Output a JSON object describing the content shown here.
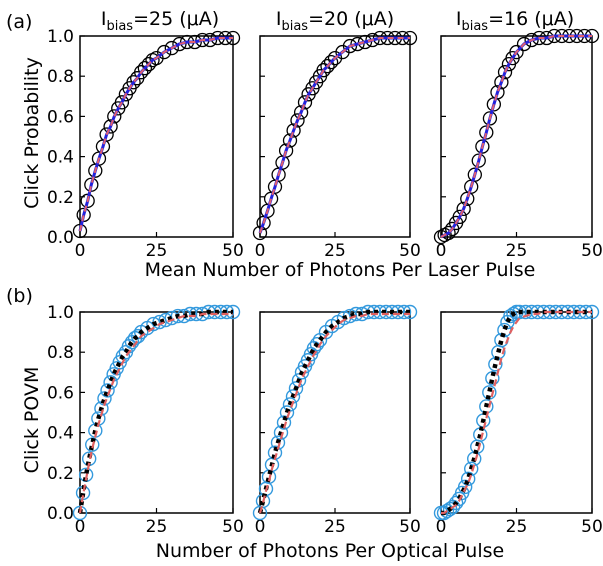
{
  "panel_labels": [
    "(a)",
    "(b)"
  ],
  "column_titles": [
    {
      "main": "I",
      "sub": "bias",
      "rest": "=25 (μA)"
    },
    {
      "main": "I",
      "sub": "bias",
      "rest": "=20 (μA)"
    },
    {
      "main": "I",
      "sub": "bias",
      "rest": "=16 (μA)"
    }
  ],
  "colors": {
    "experiment_marker_a": "#000000",
    "fit_line_a": "#2222dd",
    "fit_dashed_a": "#e06070",
    "experiment_marker_b": "#3399dd",
    "fit_dotted_b": "#000000",
    "fit_dashed_b": "#e06060"
  },
  "chart_data": [
    {
      "id": "a1",
      "type": "line",
      "row": "a",
      "column": 1,
      "ylabel": "Click Probability",
      "xlim": [
        0,
        50
      ],
      "ylim": [
        0,
        1
      ],
      "xticks": [
        "0",
        "25",
        "50"
      ],
      "yticks": [
        "0.0",
        "0.2",
        "0.4",
        "0.6",
        "0.8",
        "1.0"
      ],
      "x": [
        0,
        1.2,
        2.5,
        3.7,
        5,
        6.2,
        7.5,
        8.7,
        10,
        11.2,
        12.5,
        13.7,
        15,
        16.2,
        17.5,
        18.7,
        20,
        21.2,
        22.5,
        23.7,
        25,
        27.5,
        30,
        32.5,
        35,
        37.5,
        40,
        42.5,
        45,
        47.5,
        50
      ],
      "series": [
        {
          "values": [
            0.03,
            0.11,
            0.18,
            0.26,
            0.33,
            0.39,
            0.45,
            0.51,
            0.55,
            0.6,
            0.64,
            0.67,
            0.71,
            0.74,
            0.77,
            0.79,
            0.82,
            0.84,
            0.86,
            0.88,
            0.89,
            0.92,
            0.94,
            0.96,
            0.97,
            0.97,
            0.98,
            0.98,
            0.99,
            0.99,
            0.99
          ]
        },
        {
          "values": [
            0.03,
            0.11,
            0.18,
            0.26,
            0.33,
            0.39,
            0.45,
            0.51,
            0.55,
            0.6,
            0.64,
            0.67,
            0.71,
            0.74,
            0.77,
            0.79,
            0.82,
            0.84,
            0.86,
            0.88,
            0.89,
            0.92,
            0.94,
            0.96,
            0.97,
            0.97,
            0.98,
            0.98,
            0.99,
            0.99,
            0.99
          ]
        },
        {
          "values": [
            0.03,
            0.11,
            0.18,
            0.26,
            0.33,
            0.39,
            0.45,
            0.51,
            0.55,
            0.6,
            0.64,
            0.67,
            0.71,
            0.74,
            0.77,
            0.79,
            0.82,
            0.84,
            0.86,
            0.88,
            0.89,
            0.92,
            0.94,
            0.96,
            0.97,
            0.97,
            0.98,
            0.98,
            0.99,
            0.99,
            0.99
          ]
        }
      ]
    },
    {
      "id": "a2",
      "type": "line",
      "row": "a",
      "column": 2,
      "xlim": [
        0,
        50
      ],
      "ylim": [
        0,
        1
      ],
      "xticks": [
        "0",
        "25",
        "50"
      ],
      "yticks": [],
      "x": [
        0,
        1.2,
        2.5,
        3.7,
        5,
        6.2,
        7.5,
        8.7,
        10,
        11.2,
        12.5,
        13.7,
        15,
        16.2,
        17.5,
        18.7,
        20,
        21.2,
        22.5,
        23.7,
        25,
        27.5,
        30,
        32.5,
        35,
        37.5,
        40,
        42.5,
        45,
        47.5,
        50
      ],
      "series": [
        {
          "values": [
            0.02,
            0.07,
            0.13,
            0.19,
            0.25,
            0.31,
            0.37,
            0.43,
            0.48,
            0.53,
            0.58,
            0.62,
            0.67,
            0.71,
            0.74,
            0.77,
            0.8,
            0.83,
            0.85,
            0.87,
            0.89,
            0.92,
            0.95,
            0.96,
            0.97,
            0.98,
            0.99,
            0.99,
            0.99,
            0.99,
            0.99
          ]
        },
        {
          "values": [
            0.02,
            0.07,
            0.13,
            0.19,
            0.25,
            0.31,
            0.37,
            0.43,
            0.48,
            0.53,
            0.58,
            0.62,
            0.67,
            0.71,
            0.74,
            0.77,
            0.8,
            0.83,
            0.85,
            0.87,
            0.89,
            0.92,
            0.95,
            0.96,
            0.97,
            0.98,
            0.99,
            0.99,
            0.99,
            0.99,
            0.99
          ]
        },
        {
          "values": [
            0.02,
            0.07,
            0.13,
            0.19,
            0.25,
            0.31,
            0.37,
            0.43,
            0.48,
            0.53,
            0.58,
            0.62,
            0.67,
            0.71,
            0.74,
            0.77,
            0.8,
            0.83,
            0.85,
            0.87,
            0.89,
            0.92,
            0.95,
            0.96,
            0.97,
            0.98,
            0.99,
            0.99,
            0.99,
            0.99,
            0.99
          ]
        }
      ]
    },
    {
      "id": "a3",
      "type": "line",
      "row": "a",
      "column": 3,
      "xlim": [
        0,
        50
      ],
      "ylim": [
        0,
        1
      ],
      "xticks": [
        "0",
        "25",
        "50"
      ],
      "yticks": [],
      "x": [
        0,
        1.2,
        2.5,
        3.7,
        5,
        6.2,
        7.5,
        8.7,
        10,
        11.2,
        12.5,
        13.7,
        15,
        16.2,
        17.5,
        18.7,
        20,
        21.2,
        22.5,
        23.7,
        25,
        27.5,
        30,
        32.5,
        35,
        37.5,
        40,
        42.5,
        45,
        47.5,
        50
      ],
      "series": [
        {
          "values": [
            0.0,
            0.01,
            0.02,
            0.04,
            0.07,
            0.1,
            0.14,
            0.19,
            0.25,
            0.31,
            0.38,
            0.45,
            0.52,
            0.59,
            0.66,
            0.72,
            0.77,
            0.82,
            0.86,
            0.89,
            0.92,
            0.96,
            0.98,
            0.99,
            0.99,
            1.0,
            1.0,
            1.0,
            1.0,
            1.0,
            1.0
          ]
        },
        {
          "values": [
            0.0,
            0.01,
            0.02,
            0.04,
            0.07,
            0.1,
            0.14,
            0.19,
            0.25,
            0.31,
            0.38,
            0.45,
            0.52,
            0.59,
            0.66,
            0.72,
            0.77,
            0.82,
            0.86,
            0.89,
            0.92,
            0.96,
            0.98,
            0.99,
            0.99,
            1.0,
            1.0,
            1.0,
            1.0,
            1.0,
            1.0
          ]
        },
        {
          "values": [
            0.0,
            0.01,
            0.02,
            0.04,
            0.07,
            0.1,
            0.14,
            0.19,
            0.25,
            0.31,
            0.38,
            0.45,
            0.52,
            0.59,
            0.66,
            0.72,
            0.77,
            0.82,
            0.86,
            0.89,
            0.92,
            0.96,
            0.98,
            0.99,
            0.99,
            1.0,
            1.0,
            1.0,
            1.0,
            1.0,
            1.0
          ]
        }
      ]
    },
    {
      "id": "b1",
      "type": "line",
      "row": "b",
      "column": 1,
      "ylabel": "Click POVM",
      "xlim": [
        0,
        50
      ],
      "ylim": [
        0,
        1
      ],
      "xticks": [
        "0",
        "25",
        "50"
      ],
      "yticks": [
        "0.0",
        "0.2",
        "0.4",
        "0.6",
        "0.8",
        "1.0"
      ],
      "x": [
        0,
        1,
        2,
        3,
        4,
        5,
        6,
        7,
        8,
        9,
        10,
        11,
        12,
        13,
        14,
        15,
        16,
        17,
        18,
        19,
        20,
        22,
        24,
        26,
        28,
        30,
        32,
        34,
        36,
        38,
        40,
        42,
        44,
        46,
        48,
        50
      ],
      "series": [
        {
          "values": [
            0.0,
            0.1,
            0.19,
            0.27,
            0.34,
            0.41,
            0.47,
            0.52,
            0.57,
            0.61,
            0.65,
            0.69,
            0.72,
            0.75,
            0.78,
            0.8,
            0.83,
            0.85,
            0.87,
            0.88,
            0.9,
            0.92,
            0.94,
            0.95,
            0.96,
            0.97,
            0.98,
            0.98,
            0.99,
            0.99,
            0.99,
            1.0,
            1.0,
            1.0,
            1.0,
            1.0
          ]
        },
        {
          "values": [
            0.0,
            0.1,
            0.19,
            0.27,
            0.34,
            0.41,
            0.47,
            0.52,
            0.57,
            0.61,
            0.65,
            0.69,
            0.72,
            0.75,
            0.78,
            0.8,
            0.83,
            0.85,
            0.87,
            0.88,
            0.9,
            0.92,
            0.94,
            0.95,
            0.96,
            0.97,
            0.98,
            0.98,
            0.99,
            0.99,
            0.99,
            1.0,
            1.0,
            1.0,
            1.0,
            1.0
          ]
        },
        {
          "values": [
            0.0,
            0.09,
            0.17,
            0.25,
            0.32,
            0.38,
            0.44,
            0.49,
            0.54,
            0.58,
            0.62,
            0.66,
            0.69,
            0.72,
            0.75,
            0.78,
            0.8,
            0.82,
            0.84,
            0.86,
            0.88,
            0.9,
            0.92,
            0.94,
            0.95,
            0.96,
            0.97,
            0.98,
            0.98,
            0.98,
            0.99,
            0.99,
            0.99,
            0.99,
            0.99,
            0.99
          ]
        }
      ]
    },
    {
      "id": "b2",
      "type": "line",
      "row": "b",
      "column": 2,
      "xlim": [
        0,
        50
      ],
      "ylim": [
        0,
        1
      ],
      "xticks": [
        "0",
        "25",
        "50"
      ],
      "yticks": [],
      "x": [
        0,
        1,
        2,
        3,
        4,
        5,
        6,
        7,
        8,
        9,
        10,
        11,
        12,
        13,
        14,
        15,
        16,
        17,
        18,
        19,
        20,
        22,
        24,
        26,
        28,
        30,
        32,
        34,
        36,
        38,
        40,
        42,
        44,
        46,
        48,
        50
      ],
      "series": [
        {
          "values": [
            0.0,
            0.06,
            0.12,
            0.18,
            0.24,
            0.3,
            0.35,
            0.4,
            0.45,
            0.5,
            0.54,
            0.58,
            0.62,
            0.66,
            0.7,
            0.73,
            0.76,
            0.79,
            0.82,
            0.84,
            0.86,
            0.9,
            0.93,
            0.95,
            0.97,
            0.98,
            0.99,
            0.99,
            1.0,
            1.0,
            1.0,
            1.0,
            1.0,
            1.0,
            1.0,
            1.0
          ]
        },
        {
          "values": [
            0.0,
            0.06,
            0.12,
            0.18,
            0.24,
            0.3,
            0.35,
            0.4,
            0.45,
            0.5,
            0.54,
            0.58,
            0.62,
            0.66,
            0.7,
            0.73,
            0.76,
            0.79,
            0.82,
            0.84,
            0.86,
            0.9,
            0.93,
            0.95,
            0.97,
            0.98,
            0.99,
            0.99,
            1.0,
            1.0,
            1.0,
            1.0,
            1.0,
            1.0,
            1.0,
            1.0
          ]
        },
        {
          "values": [
            0.0,
            0.05,
            0.11,
            0.16,
            0.22,
            0.27,
            0.32,
            0.37,
            0.42,
            0.47,
            0.51,
            0.55,
            0.59,
            0.63,
            0.67,
            0.7,
            0.73,
            0.76,
            0.79,
            0.81,
            0.84,
            0.88,
            0.91,
            0.94,
            0.96,
            0.97,
            0.98,
            0.98,
            0.99,
            0.99,
            0.99,
            0.99,
            0.99,
            0.99,
            0.99,
            0.99
          ]
        }
      ]
    },
    {
      "id": "b3",
      "type": "line",
      "row": "b",
      "column": 3,
      "xlim": [
        0,
        50
      ],
      "ylim": [
        0,
        1
      ],
      "xticks": [
        "0",
        "25",
        "50"
      ],
      "yticks": [],
      "x": [
        0,
        1,
        2,
        3,
        4,
        5,
        6,
        7,
        8,
        9,
        10,
        11,
        12,
        13,
        14,
        15,
        16,
        17,
        18,
        19,
        20,
        21,
        22,
        23,
        24,
        25,
        26,
        28,
        30,
        32,
        34,
        36,
        38,
        40,
        42,
        44,
        46,
        48,
        50
      ],
      "series": [
        {
          "values": [
            0.0,
            0.0,
            0.01,
            0.02,
            0.03,
            0.05,
            0.07,
            0.1,
            0.13,
            0.17,
            0.22,
            0.27,
            0.33,
            0.39,
            0.46,
            0.53,
            0.6,
            0.67,
            0.74,
            0.8,
            0.86,
            0.91,
            0.95,
            0.98,
            0.99,
            1.0,
            1.0,
            1.0,
            1.0,
            1.0,
            1.0,
            1.0,
            1.0,
            1.0,
            1.0,
            1.0,
            1.0,
            1.0,
            1.0
          ]
        },
        {
          "values": [
            0.0,
            0.0,
            0.01,
            0.02,
            0.03,
            0.05,
            0.07,
            0.1,
            0.13,
            0.17,
            0.22,
            0.27,
            0.33,
            0.39,
            0.46,
            0.53,
            0.6,
            0.67,
            0.74,
            0.8,
            0.86,
            0.91,
            0.95,
            0.98,
            0.99,
            1.0,
            1.0,
            1.0,
            1.0,
            1.0,
            1.0,
            1.0,
            1.0,
            1.0,
            1.0,
            1.0,
            1.0,
            1.0,
            1.0
          ]
        },
        {
          "values": [
            0.0,
            0.0,
            0.01,
            0.02,
            0.03,
            0.04,
            0.06,
            0.09,
            0.12,
            0.15,
            0.19,
            0.24,
            0.29,
            0.35,
            0.41,
            0.47,
            0.53,
            0.59,
            0.65,
            0.71,
            0.77,
            0.82,
            0.86,
            0.9,
            0.93,
            0.95,
            0.97,
            0.98,
            0.99,
            0.99,
            1.0,
            1.0,
            1.0,
            1.0,
            1.0,
            1.0,
            1.0,
            1.0,
            1.0
          ]
        }
      ]
    }
  ],
  "x_axis_titles": {
    "a": "Mean Number of Photons Per Laser Pulse",
    "b": "Number of Photons Per Optical Pulse"
  }
}
